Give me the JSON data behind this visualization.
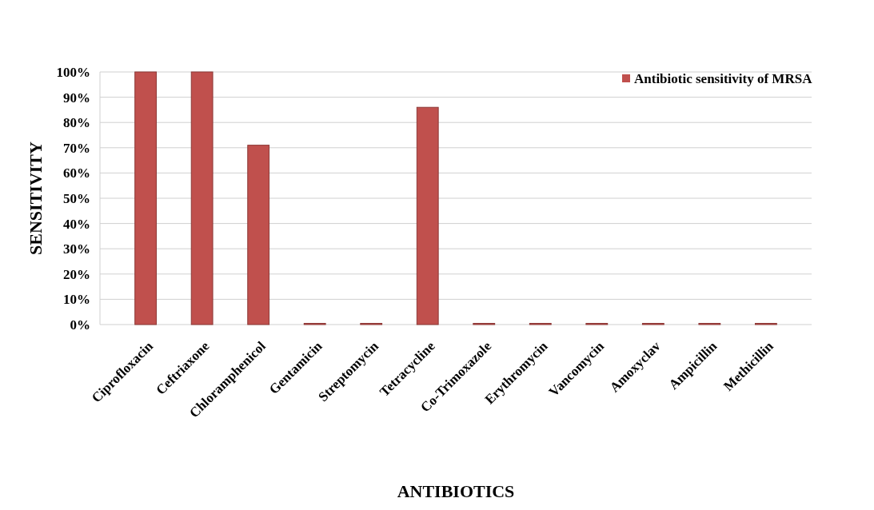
{
  "chart_data": {
    "type": "bar",
    "xlabel": "ANTIBIOTICS",
    "ylabel": "SENSITIVITY",
    "categories": [
      "Ciprofloxacin",
      "Ceftriaxone",
      "Chloramphenicol",
      "Gentamicin",
      "Streptomycin",
      "Tetracycline",
      "Co-Trimoxazole",
      "Erythromycin",
      "Vancomycin",
      "Amoxyclav",
      "Ampicillin",
      "Methicillin"
    ],
    "series": [
      {
        "name": "Antibiotic sensitivity of MRSA",
        "color": "#c0504d",
        "values": [
          100,
          100,
          71,
          0,
          0,
          86,
          0,
          0,
          0,
          0,
          0,
          0
        ]
      }
    ],
    "ylim": [
      0,
      100
    ],
    "yticks": [
      {
        "value": 0,
        "label": "0%"
      },
      {
        "value": 10,
        "label": "10%"
      },
      {
        "value": 20,
        "label": "20%"
      },
      {
        "value": 30,
        "label": "30%"
      },
      {
        "value": 40,
        "label": "40%"
      },
      {
        "value": 50,
        "label": "50%"
      },
      {
        "value": 60,
        "label": "60%"
      },
      {
        "value": 70,
        "label": "70%"
      },
      {
        "value": 80,
        "label": "80%"
      },
      {
        "value": 90,
        "label": "90%"
      },
      {
        "value": 100,
        "label": "100%"
      }
    ],
    "grid": "y",
    "legend": "top right"
  }
}
